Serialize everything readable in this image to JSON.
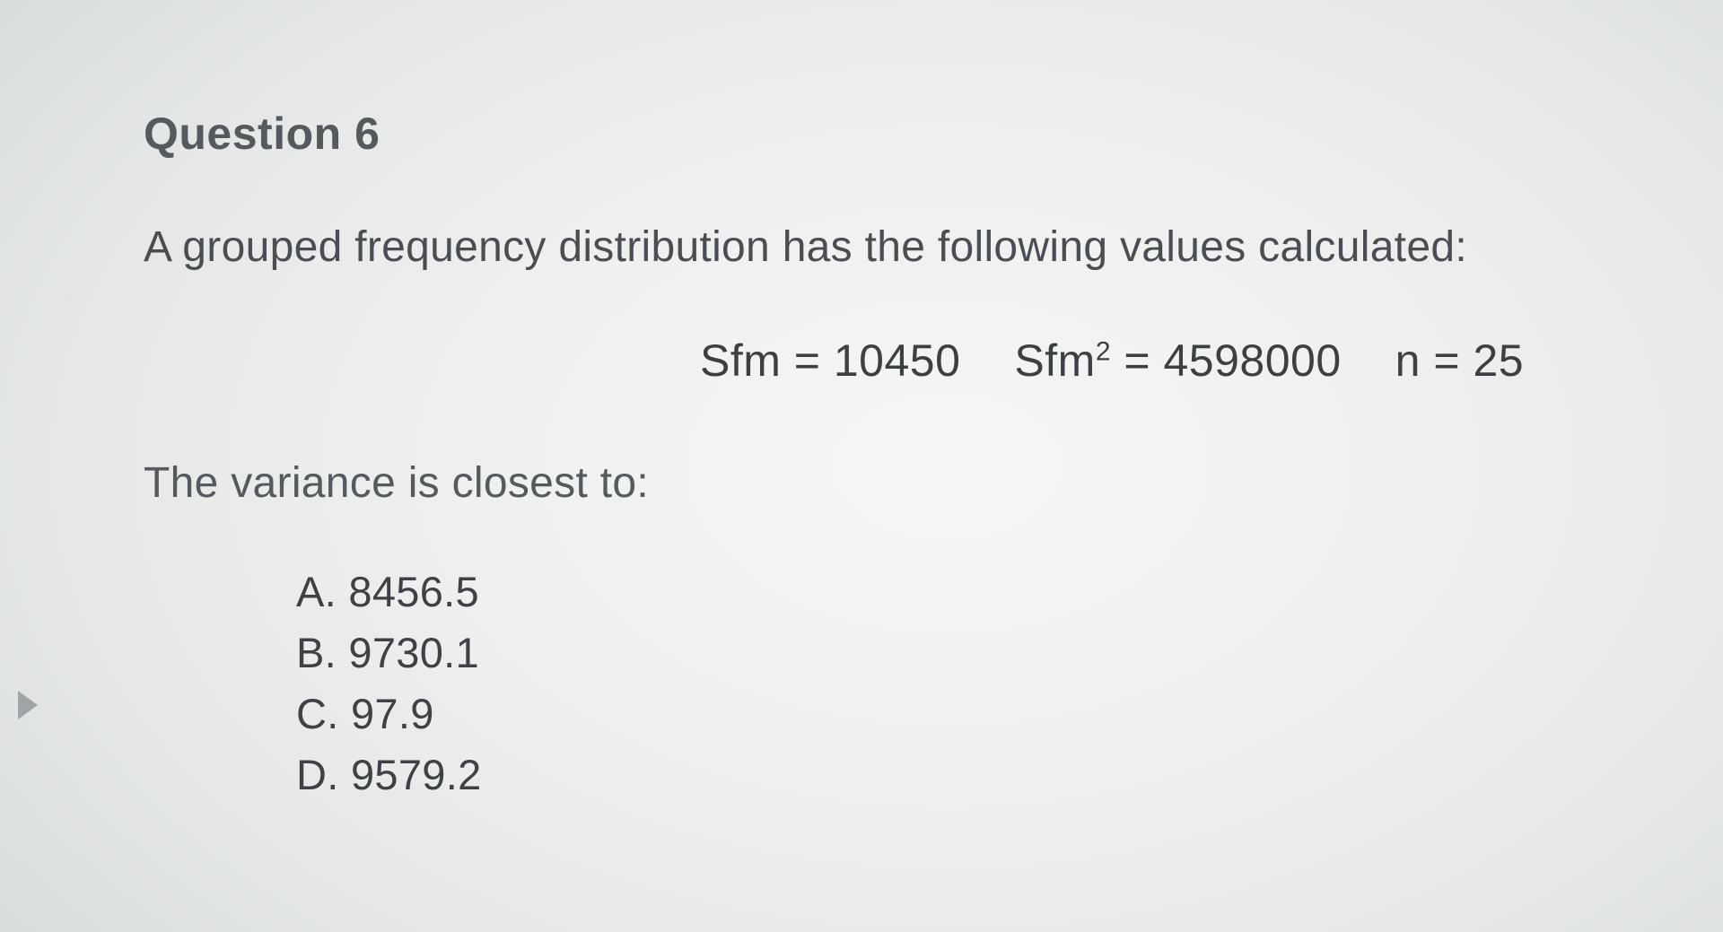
{
  "question": {
    "heading": "Question 6",
    "prompt": "A grouped frequency distribution has the following values calculated:",
    "formulas": {
      "sfm_label": "Sfm = ",
      "sfm_value": "10450",
      "sfm2_label_pre": "Sfm",
      "sfm2_exp": "2",
      "sfm2_label_post": " = ",
      "sfm2_value": "4598000",
      "n_label": "n = ",
      "n_value": "25"
    },
    "closing": "The variance is closest to:",
    "options": [
      {
        "letter": "A.",
        "text": "8456.5"
      },
      {
        "letter": "B.",
        "text": "9730.1"
      },
      {
        "letter": "C.",
        "text": "97.9"
      },
      {
        "letter": "D.",
        "text": "9579.2"
      }
    ]
  }
}
